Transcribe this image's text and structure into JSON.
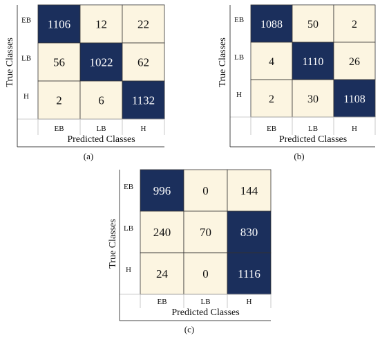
{
  "colors": {
    "high": "#1b2f5c",
    "low": "#fcf5e1",
    "border": "#333333",
    "text_on_high": "#ffffff",
    "text_on_low": "#111111"
  },
  "chart_data": [
    {
      "type": "heatmap",
      "panel_label": "(a)",
      "xlabel": "Predicted Classes",
      "ylabel": "True Classes",
      "row_labels": [
        "EB",
        "LB",
        "H"
      ],
      "col_labels": [
        "EB",
        "LB",
        "H"
      ],
      "values": [
        [
          1106,
          12,
          22
        ],
        [
          56,
          1022,
          62
        ],
        [
          2,
          6,
          1132
        ]
      ]
    },
    {
      "type": "heatmap",
      "panel_label": "(b)",
      "xlabel": "Predicted Classes",
      "ylabel": "True Classes",
      "row_labels": [
        "EB",
        "LB",
        "H"
      ],
      "col_labels": [
        "EB",
        "LB",
        "H"
      ],
      "values": [
        [
          1088,
          50,
          2
        ],
        [
          4,
          1110,
          26
        ],
        [
          2,
          30,
          1108
        ]
      ]
    },
    {
      "type": "heatmap",
      "panel_label": "(c)",
      "xlabel": "Predicted Classes",
      "ylabel": "True Classes",
      "row_labels": [
        "EB",
        "LB",
        "H"
      ],
      "col_labels": [
        "EB",
        "LB",
        "H"
      ],
      "values": [
        [
          996,
          0,
          144
        ],
        [
          240,
          70,
          830
        ],
        [
          24,
          0,
          1116
        ]
      ]
    }
  ]
}
